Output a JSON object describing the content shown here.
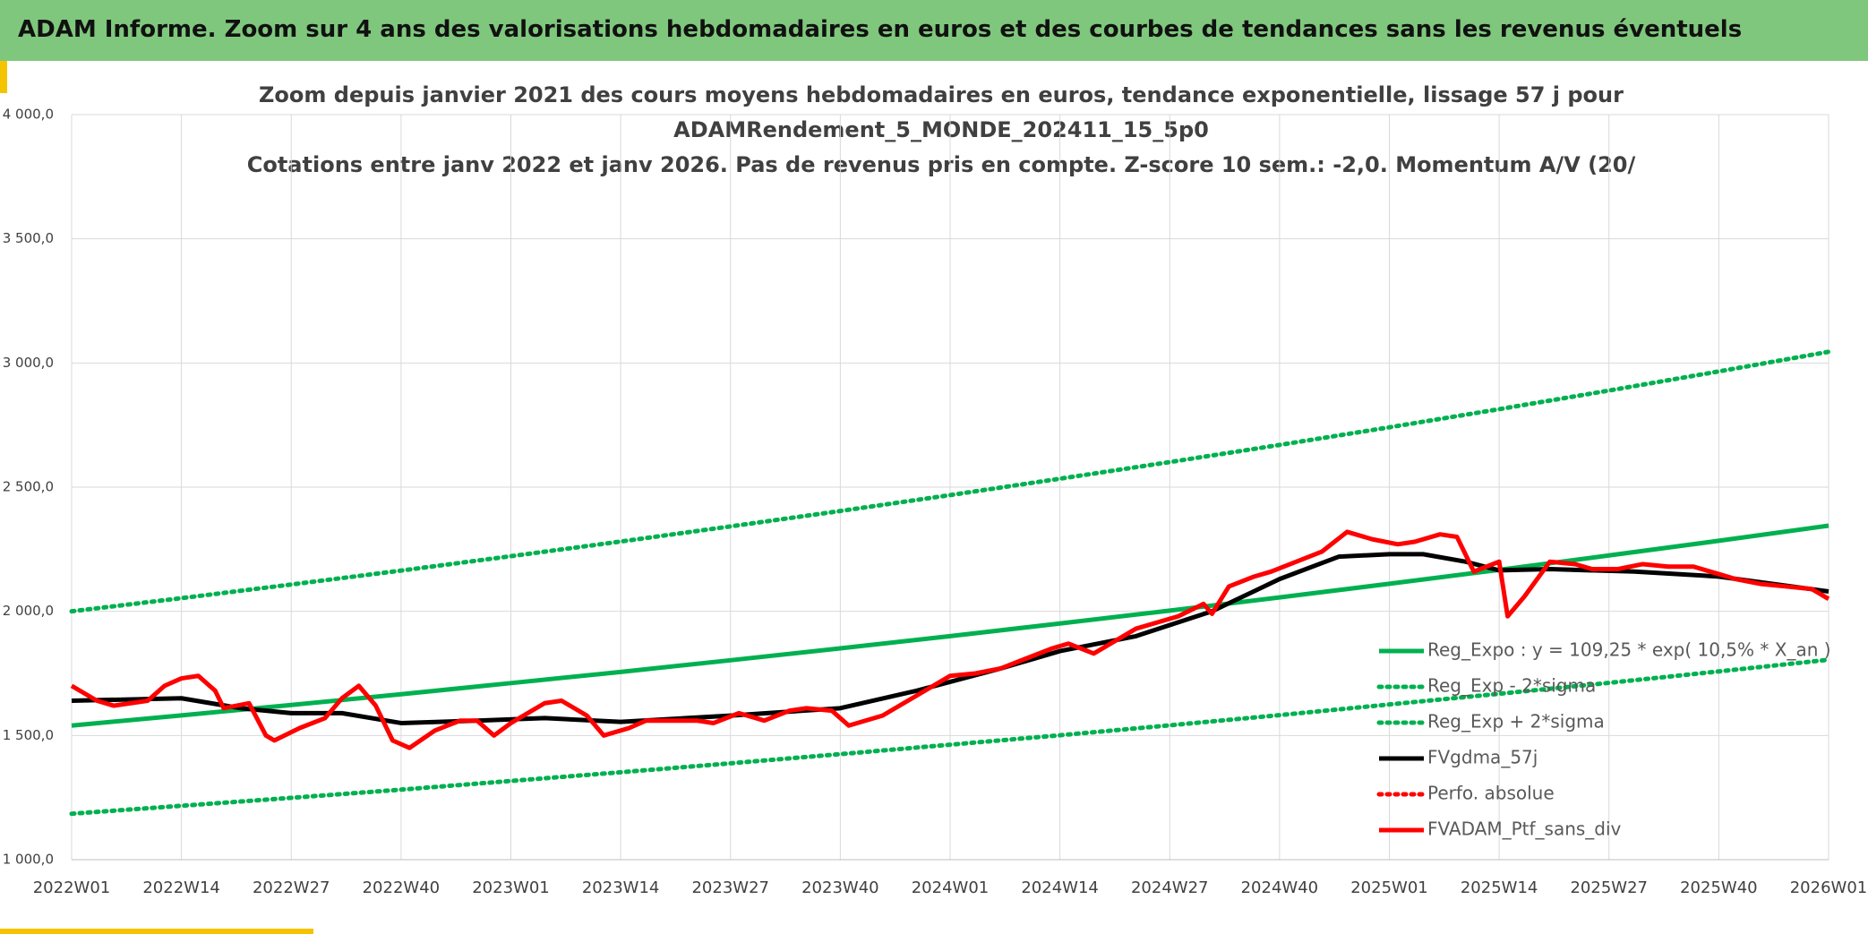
{
  "banner": {
    "title": "ADAM Informe. Zoom sur 4 ans des valorisations hebdomadaires en euros et des courbes de tendances sans les revenus éventuels"
  },
  "chart_data": {
    "type": "line",
    "title": [
      "Zoom depuis janvier 2021 des cours moyens hebdomadaires en euros, tendance exponentielle, lissage 57 j pour",
      "ADAMRendement_5_MONDE_202411_15_5p0",
      "Cotations entre janv 2022 et janv 2026. Pas de revenus pris en compte. Z-score 10 sem.: -2,0. Momentum A/V (20/"
    ],
    "xlim": [
      0,
      208
    ],
    "xticks": [
      {
        "value": 0,
        "label": "2022W01"
      },
      {
        "value": 13,
        "label": "2022W14"
      },
      {
        "value": 26,
        "label": "2022W27"
      },
      {
        "value": 39,
        "label": "2022W40"
      },
      {
        "value": 52,
        "label": "2023W01"
      },
      {
        "value": 65,
        "label": "2023W14"
      },
      {
        "value": 78,
        "label": "2023W27"
      },
      {
        "value": 91,
        "label": "2023W40"
      },
      {
        "value": 104,
        "label": "2024W01"
      },
      {
        "value": 117,
        "label": "2024W14"
      },
      {
        "value": 130,
        "label": "2024W27"
      },
      {
        "value": 143,
        "label": "2024W40"
      },
      {
        "value": 156,
        "label": "2025W01"
      },
      {
        "value": 169,
        "label": "2025W14"
      },
      {
        "value": 182,
        "label": "2025W27"
      },
      {
        "value": 195,
        "label": "2025W40"
      },
      {
        "value": 208,
        "label": "2026W01"
      }
    ],
    "ylim": [
      1000,
      4000
    ],
    "yticks": [
      {
        "value": 1000,
        "label": "1 000,0"
      },
      {
        "value": 1500,
        "label": "1 500,0"
      },
      {
        "value": 2000,
        "label": "2 000,0"
      },
      {
        "value": 2500,
        "label": "2 500,0"
      },
      {
        "value": 3000,
        "label": "3 000,0"
      },
      {
        "value": 3500,
        "label": "3 500,0"
      },
      {
        "value": 4000,
        "label": "4 000,0"
      }
    ],
    "grid": true,
    "series": [
      {
        "name": "Reg_Expo : y = 109,25 * exp( 10,5% *  X_an )",
        "color": "#00b050",
        "style": "solid",
        "x": [
          0,
          13,
          26,
          39,
          52,
          65,
          78,
          91,
          104,
          117,
          130,
          143,
          156,
          169,
          182,
          195,
          208
        ],
        "values": [
          1540,
          1581,
          1623,
          1666,
          1711,
          1756,
          1803,
          1851,
          1900,
          1951,
          2003,
          2056,
          2111,
          2167,
          2225,
          2284,
          2345
        ]
      },
      {
        "name": "Reg_Exp - 2*sigma",
        "color": "#00b050",
        "style": "dotted",
        "x": [
          0,
          13,
          26,
          39,
          52,
          65,
          78,
          91,
          104,
          117,
          130,
          143,
          156,
          169,
          182,
          195,
          208
        ],
        "values": [
          1185,
          1217,
          1249,
          1282,
          1317,
          1352,
          1388,
          1425,
          1463,
          1501,
          1541,
          1582,
          1625,
          1668,
          1712,
          1758,
          1805
        ]
      },
      {
        "name": "Reg_Exp + 2*sigma",
        "color": "#00b050",
        "style": "dotted",
        "x": [
          0,
          13,
          26,
          39,
          52,
          65,
          78,
          91,
          104,
          117,
          130,
          143,
          156,
          169,
          182,
          195,
          208
        ],
        "values": [
          2000,
          2053,
          2108,
          2164,
          2222,
          2281,
          2342,
          2404,
          2468,
          2534,
          2601,
          2670,
          2741,
          2814,
          2889,
          2966,
          3045
        ]
      },
      {
        "name": "FVgdma_57j",
        "color": "#000000",
        "style": "solid",
        "x": [
          0,
          13,
          20,
          26,
          32,
          39,
          48,
          56,
          65,
          78,
          91,
          100,
          110,
          117,
          126,
          135,
          143,
          150,
          156,
          160,
          165,
          169,
          175,
          185,
          195,
          208
        ],
        "values": [
          1640,
          1650,
          1610,
          1590,
          1590,
          1550,
          1560,
          1570,
          1555,
          1580,
          1610,
          1680,
          1770,
          1840,
          1900,
          2000,
          2130,
          2220,
          2230,
          2230,
          2200,
          2165,
          2170,
          2160,
          2140,
          2080
        ]
      },
      {
        "name": "Perfo. absolue",
        "color": "#ff0000",
        "style": "dotted",
        "x": [],
        "values": []
      },
      {
        "name": "FVADAM_Ptf_sans_div",
        "color": "#ff0000",
        "style": "solid",
        "x": [
          0,
          3,
          5,
          7,
          9,
          11,
          13,
          15,
          17,
          18,
          21,
          23,
          24,
          27,
          30,
          32,
          34,
          36,
          38,
          40,
          43,
          46,
          48,
          50,
          52,
          56,
          58,
          61,
          63,
          66,
          68,
          71,
          74,
          76,
          79,
          82,
          85,
          87,
          90,
          92,
          96,
          99,
          102,
          104,
          107,
          110,
          113,
          116,
          118,
          121,
          123,
          126,
          129,
          131,
          134,
          135,
          137,
          140,
          142,
          145,
          148,
          151,
          154,
          157,
          159,
          162,
          164,
          166,
          169,
          170,
          172,
          175,
          178,
          180,
          183,
          186,
          189,
          192,
          195,
          197,
          200,
          203,
          206,
          208
        ],
        "values": [
          1700,
          1640,
          1620,
          1630,
          1640,
          1700,
          1730,
          1740,
          1680,
          1610,
          1630,
          1500,
          1480,
          1530,
          1570,
          1650,
          1700,
          1620,
          1480,
          1450,
          1520,
          1560,
          1560,
          1500,
          1550,
          1630,
          1640,
          1580,
          1500,
          1530,
          1560,
          1560,
          1560,
          1550,
          1590,
          1560,
          1600,
          1610,
          1600,
          1540,
          1580,
          1640,
          1700,
          1740,
          1750,
          1770,
          1810,
          1850,
          1870,
          1830,
          1870,
          1930,
          1960,
          1980,
          2030,
          1990,
          2100,
          2140,
          2160,
          2200,
          2240,
          2320,
          2290,
          2270,
          2280,
          2310,
          2300,
          2160,
          2200,
          1980,
          2060,
          2200,
          2190,
          2170,
          2170,
          2190,
          2180,
          2180,
          2150,
          2130,
          2110,
          2100,
          2090,
          2050
        ]
      }
    ]
  }
}
